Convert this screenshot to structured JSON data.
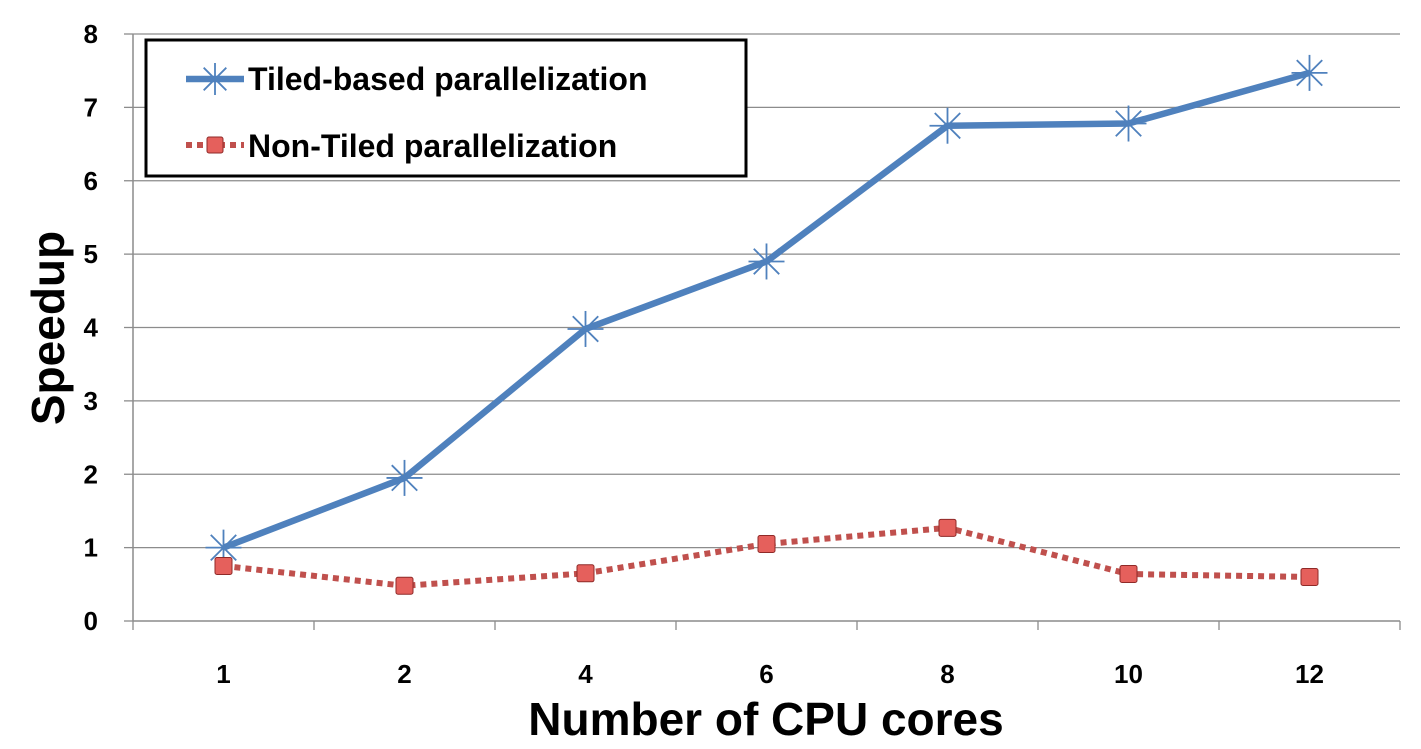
{
  "chart_data": {
    "type": "line",
    "title": "",
    "xlabel": "Number of CPU cores",
    "ylabel": "Speedup",
    "categories": [
      "1",
      "2",
      "4",
      "6",
      "8",
      "10",
      "12"
    ],
    "ylim": [
      0,
      8
    ],
    "yticks": [
      "0",
      "1",
      "2",
      "3",
      "4",
      "5",
      "6",
      "7",
      "8"
    ],
    "grid": "horizontal",
    "legend_position": "top-left",
    "series": [
      {
        "name": "Tiled-based parallelization",
        "values": [
          1.0,
          1.95,
          3.98,
          4.9,
          6.75,
          6.78,
          7.47
        ],
        "color": "#4f81bd",
        "marker": "asterisk",
        "line_style": "solid"
      },
      {
        "name": "Non-Tiled parallelization",
        "values": [
          0.75,
          0.48,
          0.65,
          1.05,
          1.27,
          0.64,
          0.6
        ],
        "color": "#c0504d",
        "marker": "square",
        "line_style": "dotted"
      }
    ]
  }
}
